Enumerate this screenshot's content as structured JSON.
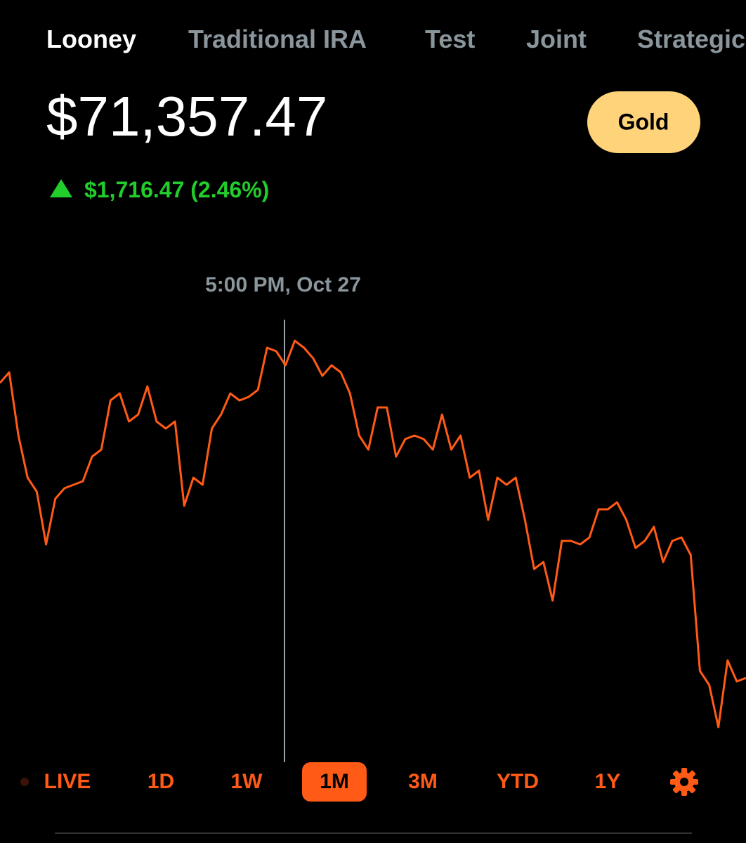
{
  "tabs": [
    "Looney",
    "Traditional IRA",
    "Test",
    "Joint",
    "Strategic"
  ],
  "balance": "$71,357.47",
  "badge": "Gold",
  "change": "$1,716.47 (2.46%)",
  "cursor_label": "5:00 PM, Oct 27",
  "ranges": [
    "LIVE",
    "1D",
    "1W",
    "1M",
    "3M",
    "YTD",
    "1Y"
  ],
  "selected_range": "1M",
  "chart_data": {
    "type": "line",
    "color": "#ff5a16",
    "ylim": [
      0,
      640
    ],
    "values": [
      535,
      550,
      460,
      400,
      380,
      305,
      370,
      385,
      390,
      395,
      430,
      440,
      510,
      520,
      480,
      490,
      530,
      480,
      470,
      480,
      360,
      400,
      390,
      470,
      490,
      520,
      510,
      515,
      525,
      585,
      580,
      560,
      595,
      585,
      570,
      545,
      560,
      550,
      520,
      460,
      440,
      500,
      500,
      430,
      455,
      460,
      455,
      440,
      490,
      440,
      460,
      400,
      410,
      340,
      400,
      390,
      400,
      340,
      270,
      280,
      225,
      310,
      310,
      305,
      315,
      355,
      355,
      365,
      340,
      300,
      310,
      330,
      280,
      310,
      315,
      290,
      125,
      105,
      45,
      140,
      110,
      115
    ]
  }
}
